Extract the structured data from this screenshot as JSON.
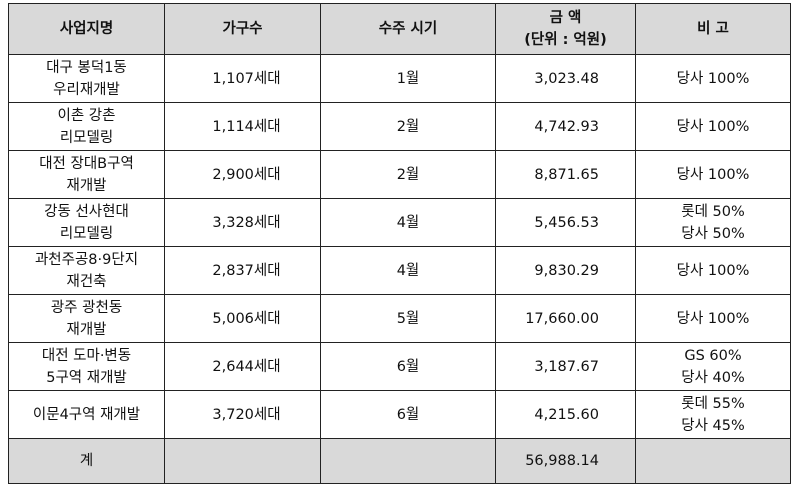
{
  "headers": {
    "project": "사업지명",
    "households": "가구수",
    "timing": "수주 시기",
    "amount_line1": "금  액",
    "amount_line2": "(단위 : 억원)",
    "note": "비  고"
  },
  "rows": [
    {
      "name": [
        "대구 봉덕1동",
        "우리재개발"
      ],
      "households": "1,107세대",
      "month": "1월",
      "amount": "3,023.48",
      "note": [
        "당사 100%"
      ]
    },
    {
      "name": [
        "이촌 강촌",
        "리모델링"
      ],
      "households": "1,114세대",
      "month": "2월",
      "amount": "4,742.93",
      "note": [
        "당사 100%"
      ]
    },
    {
      "name": [
        "대전 장대B구역",
        "재개발"
      ],
      "households": "2,900세대",
      "month": "2월",
      "amount": "8,871.65",
      "note": [
        "당사 100%"
      ]
    },
    {
      "name": [
        "강동 선사현대",
        "리모델링"
      ],
      "households": "3,328세대",
      "month": "4월",
      "amount": "5,456.53",
      "note": [
        "롯데 50%",
        "당사 50%"
      ]
    },
    {
      "name": [
        "과천주공8·9단지",
        "재건축"
      ],
      "households": "2,837세대",
      "month": "4월",
      "amount": "9,830.29",
      "note": [
        "당사 100%"
      ]
    },
    {
      "name": [
        "광주 광천동",
        "재개발"
      ],
      "households": "5,006세대",
      "month": "5월",
      "amount": "17,660.00",
      "note": [
        "당사 100%"
      ]
    },
    {
      "name": [
        "대전 도마·변동",
        "5구역 재개발"
      ],
      "households": "2,644세대",
      "month": "6월",
      "amount": "3,187.67",
      "note": [
        "GS 60%",
        "당사 40%"
      ]
    },
    {
      "name": [
        "이문4구역 재개발"
      ],
      "households": "3,720세대",
      "month": "6월",
      "amount": "4,215.60",
      "note": [
        "롯데 55%",
        "당사 45%"
      ]
    }
  ],
  "total": {
    "label": "계",
    "amount": "56,988.14"
  }
}
